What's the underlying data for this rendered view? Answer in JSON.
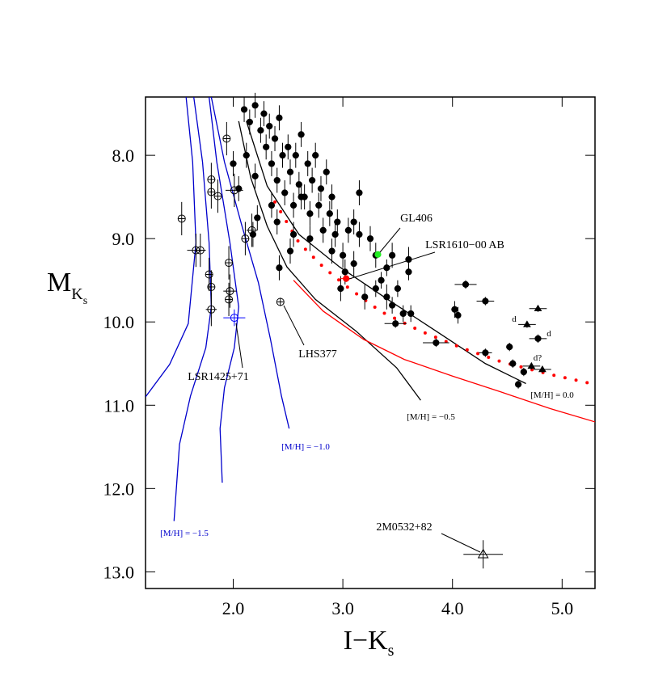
{
  "chart_data": {
    "type": "scatter",
    "xlabel": [
      "I−K",
      "s"
    ],
    "ylabel": [
      "M",
      "K",
      "s"
    ],
    "xlim": [
      1.2,
      5.3
    ],
    "ylim": [
      7.3,
      13.2
    ],
    "y_inverted": true,
    "xticks": [
      {
        "value": 2,
        "label": "2.0"
      },
      {
        "value": 3,
        "label": "3.0"
      },
      {
        "value": 4,
        "label": "4.0"
      },
      {
        "value": 5,
        "label": "5.0"
      }
    ],
    "yticks": [
      {
        "value": 8,
        "label": "8.0"
      },
      {
        "value": 9,
        "label": "9.0"
      },
      {
        "value": 10,
        "label": "10.0"
      },
      {
        "value": 11,
        "label": "11.0"
      },
      {
        "value": 12,
        "label": "12.0"
      },
      {
        "value": 13,
        "label": "13.0"
      }
    ],
    "lines": [
      {
        "color": "#0000cc",
        "style": "solid",
        "x": [
          1.57,
          1.63,
          1.66,
          1.59,
          1.42,
          1.2
        ],
        "values": [
          7.3,
          8.08,
          9.05,
          10.02,
          10.51,
          10.9
        ]
      },
      {
        "color": "#0000cc",
        "style": "solid",
        "x": [
          1.64,
          1.72,
          1.78,
          1.8,
          1.75,
          1.61,
          1.51,
          1.46
        ],
        "values": [
          7.3,
          8.08,
          9.05,
          9.82,
          10.31,
          10.89,
          11.47,
          12.39
        ]
      },
      {
        "color": "#0000cc",
        "style": "solid",
        "x": [
          1.78,
          1.85,
          1.97,
          2.05,
          2.01,
          1.92,
          1.88,
          1.9
        ],
        "values": [
          7.3,
          8.08,
          9.05,
          9.82,
          10.31,
          10.79,
          11.28,
          11.93
        ]
      },
      {
        "color": "#0000cc",
        "style": "solid",
        "x": [
          1.8,
          1.92,
          2.08,
          2.23,
          2.34,
          2.44,
          2.51
        ],
        "values": [
          7.3,
          8.08,
          8.85,
          9.53,
          10.21,
          10.89,
          11.28
        ]
      },
      {
        "color": "#000000",
        "style": "solid",
        "x": [
          2.05,
          2.16,
          2.31,
          2.49,
          2.75,
          3.12,
          3.49,
          3.71
        ],
        "values": [
          7.59,
          8.27,
          8.85,
          9.34,
          9.73,
          10.11,
          10.55,
          10.94
        ]
      },
      {
        "color": "#000000",
        "style": "solid",
        "x": [
          2.12,
          2.31,
          2.6,
          2.97,
          3.41,
          3.85,
          4.3,
          4.67
        ],
        "values": [
          7.59,
          8.37,
          8.95,
          9.34,
          9.73,
          10.11,
          10.5,
          10.74
        ]
      },
      {
        "color": "#ff0000",
        "style": "solid",
        "x": [
          2.55,
          2.82,
          3.19,
          3.56,
          4.0,
          4.44,
          4.89,
          5.3
        ],
        "values": [
          9.5,
          9.87,
          10.21,
          10.45,
          10.65,
          10.84,
          11.04,
          11.2
        ]
      },
      {
        "color": "#ff0000",
        "style": "dotted",
        "x": [
          2.38,
          2.6,
          2.82,
          3.04,
          3.34,
          3.71,
          4.08,
          4.45,
          4.89,
          5.3
        ],
        "values": [
          8.56,
          9.05,
          9.34,
          9.58,
          9.87,
          10.11,
          10.31,
          10.48,
          10.63,
          10.75
        ]
      }
    ],
    "series": [
      {
        "marker": "circle",
        "filled": true,
        "color": "#000000",
        "x": [
          2.1,
          2.15,
          2.2,
          2.25,
          2.28,
          2.3,
          2.33,
          2.35,
          2.38,
          2.4,
          2.42,
          2.45,
          2.47,
          2.5,
          2.52,
          2.55,
          2.57,
          2.6,
          2.62,
          2.65,
          2.68,
          2.7,
          2.72,
          2.75,
          2.78,
          2.8,
          2.82,
          2.85,
          2.88,
          2.9,
          2.93,
          2.95,
          2.98,
          3.0,
          3.02,
          3.05,
          3.1,
          3.15,
          3.2,
          3.25,
          3.3,
          3.35,
          3.4,
          3.45,
          3.5,
          3.55,
          3.6,
          3.62,
          3.48,
          3.85,
          4.02,
          4.05,
          4.12,
          4.3,
          4.3,
          4.52,
          4.55,
          4.6,
          4.65,
          4.78,
          2.0,
          2.05,
          2.12,
          2.18,
          2.22,
          2.35,
          2.4,
          2.42,
          2.62,
          2.7,
          2.52,
          3.1,
          3.15,
          3.45,
          3.6,
          2.55,
          2.2,
          2.9,
          3.3,
          3.4
        ],
        "values": [
          7.45,
          7.6,
          7.4,
          7.7,
          7.5,
          7.9,
          7.65,
          8.1,
          7.8,
          8.3,
          7.55,
          8.0,
          8.45,
          7.9,
          8.2,
          8.6,
          8.0,
          8.35,
          7.75,
          8.5,
          8.1,
          8.7,
          8.3,
          8.0,
          8.6,
          8.4,
          8.9,
          8.2,
          8.7,
          8.5,
          8.95,
          8.8,
          9.6,
          9.2,
          9.4,
          8.9,
          9.3,
          8.95,
          9.7,
          9.0,
          9.6,
          9.5,
          9.35,
          9.8,
          9.6,
          9.9,
          9.4,
          9.9,
          10.02,
          10.25,
          9.85,
          9.92,
          9.55,
          9.75,
          10.37,
          10.3,
          10.5,
          10.75,
          10.6,
          10.2,
          8.1,
          8.4,
          8.0,
          8.95,
          8.75,
          8.6,
          8.8,
          9.35,
          8.5,
          9.0,
          9.15,
          8.8,
          8.45,
          9.2,
          9.25,
          8.95,
          8.25,
          9.15,
          9.2,
          9.7
        ],
        "xerr": [
          0.03,
          0.03,
          0.03,
          0.03,
          0.03,
          0.03,
          0.03,
          0.03,
          0.03,
          0.03,
          0.03,
          0.03,
          0.03,
          0.03,
          0.03,
          0.03,
          0.03,
          0.03,
          0.03,
          0.03,
          0.03,
          0.03,
          0.03,
          0.03,
          0.03,
          0.03,
          0.03,
          0.03,
          0.03,
          0.03,
          0.03,
          0.03,
          0.03,
          0.03,
          0.03,
          0.03,
          0.03,
          0.03,
          0.03,
          0.03,
          0.03,
          0.03,
          0.03,
          0.03,
          0.03,
          0.03,
          0.03,
          0.03,
          0.1,
          0.12,
          0.03,
          0.03,
          0.1,
          0.08,
          0.06,
          0.03,
          0.03,
          0.03,
          0.03,
          0.08,
          0.03,
          0.03,
          0.03,
          0.03,
          0.03,
          0.03,
          0.03,
          0.03,
          0.03,
          0.03,
          0.03,
          0.03,
          0.03,
          0.03,
          0.03,
          0.03,
          0.03,
          0.03,
          0.03,
          0.03
        ],
        "yerr": [
          0.15,
          0.15,
          0.15,
          0.15,
          0.15,
          0.15,
          0.15,
          0.15,
          0.15,
          0.15,
          0.15,
          0.15,
          0.15,
          0.15,
          0.15,
          0.15,
          0.15,
          0.15,
          0.15,
          0.15,
          0.15,
          0.15,
          0.15,
          0.15,
          0.15,
          0.15,
          0.15,
          0.15,
          0.15,
          0.15,
          0.15,
          0.15,
          0.15,
          0.15,
          0.15,
          0.15,
          0.15,
          0.15,
          0.15,
          0.15,
          0.1,
          0.1,
          0.1,
          0.1,
          0.1,
          0.1,
          0.1,
          0.1,
          0.05,
          0.05,
          0.1,
          0.1,
          0.05,
          0.05,
          0.05,
          0.05,
          0.05,
          0.05,
          0.05,
          0.05,
          0.15,
          0.15,
          0.15,
          0.15,
          0.15,
          0.15,
          0.15,
          0.15,
          0.15,
          0.15,
          0.15,
          0.15,
          0.15,
          0.15,
          0.15,
          0.15,
          0.15,
          0.15,
          0.15,
          0.15
        ]
      },
      {
        "marker": "circle",
        "filled": false,
        "color": "#000000",
        "x": [
          1.53,
          1.66,
          1.7,
          1.78,
          1.8,
          1.8,
          1.8,
          1.8,
          1.86,
          1.96,
          1.97,
          2.01,
          1.96,
          2.11,
          2.17,
          1.94
        ],
        "values": [
          8.76,
          9.14,
          9.14,
          9.43,
          8.29,
          8.44,
          9.85,
          9.58,
          8.49,
          9.29,
          9.63,
          8.42,
          9.73,
          9.0,
          8.9,
          7.8
        ],
        "xerr": [
          0.03,
          0.08,
          0.05,
          0.03,
          0.03,
          0.03,
          0.05,
          0.03,
          0.03,
          0.03,
          0.06,
          0.08,
          0.03,
          0.03,
          0.05,
          0.03
        ],
        "yerr": [
          0.2,
          0.2,
          0.2,
          0.2,
          0.2,
          0.2,
          0.2,
          0.2,
          0.2,
          0.2,
          0.2,
          0.2,
          0.2,
          0.2,
          0.2,
          0.2
        ]
      },
      {
        "marker": "circle",
        "filled": false,
        "color": "#000000",
        "x": [
          2.43
        ],
        "values": [
          9.76
        ],
        "xerr": [
          0.03
        ],
        "yerr": [
          0.05
        ]
      },
      {
        "marker": "circle",
        "filled": false,
        "color": "#0000ff",
        "x": [
          2.01
        ],
        "values": [
          9.95
        ],
        "xerr": [
          0.1
        ],
        "yerr": [
          0.1
        ]
      },
      {
        "marker": "circle",
        "filled": true,
        "color": "#22ee22",
        "x": [
          3.32
        ],
        "values": [
          9.19
        ],
        "xerr": [
          0
        ],
        "yerr": [
          0
        ]
      },
      {
        "marker": "circle",
        "filled": true,
        "color": "#ff0000",
        "x": [
          3.03
        ],
        "values": [
          9.48
        ],
        "xerr": [
          0.05
        ],
        "yerr": [
          0.04
        ]
      },
      {
        "marker": "triangle",
        "filled": true,
        "color": "#000000",
        "x": [
          4.68,
          4.78,
          4.72,
          4.82
        ],
        "values": [
          10.03,
          9.84,
          10.53,
          10.57
        ],
        "xerr": [
          0.08,
          0.08,
          0.08,
          0.08
        ],
        "yerr": [
          0.04,
          0.04,
          0.04,
          0.04
        ]
      },
      {
        "marker": "triangle",
        "filled": false,
        "color": "#000000",
        "x": [
          4.28
        ],
        "values": [
          12.79
        ],
        "xerr": [
          0.18
        ],
        "yerr": [
          0.17
        ]
      }
    ],
    "annotations": [
      {
        "text": "GL406",
        "color": "#000000"
      },
      {
        "text": "LSR1610−00 AB",
        "color": "#000000"
      },
      {
        "text": "LHS377",
        "color": "#000000"
      },
      {
        "text": "LSR1425+71",
        "color": "#000000"
      },
      {
        "text": "2M0532+82",
        "color": "#000000"
      },
      {
        "text": "[M/H] = 0.0",
        "color": "#000000"
      },
      {
        "text": "[M/H] = −0.5",
        "color": "#000000"
      },
      {
        "text": "[M/H] = −1.0",
        "color": "#0000cc"
      },
      {
        "text": "[M/H] = −1.5",
        "color": "#0000cc"
      },
      {
        "text": "d",
        "color": "#000000"
      },
      {
        "text": "d",
        "color": "#000000"
      },
      {
        "text": "d?",
        "color": "#000000"
      }
    ]
  }
}
